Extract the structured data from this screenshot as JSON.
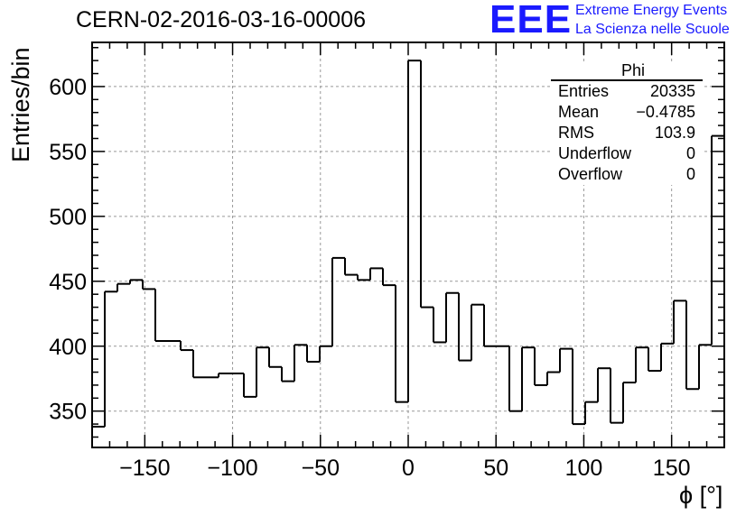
{
  "header": {
    "title": "CERN-02-2016-03-16-00006",
    "logo_text": "EEE",
    "org_line1": "Extreme Energy Events",
    "org_line2": "La Scienza nelle Scuole"
  },
  "stats_box": {
    "name": "Phi",
    "rows": [
      {
        "label": "Entries",
        "value": "20335"
      },
      {
        "label": "Mean",
        "value": "−0.4785"
      },
      {
        "label": "RMS",
        "value": "103.9"
      },
      {
        "label": "Underflow",
        "value": "0"
      },
      {
        "label": "Overflow",
        "value": "0"
      }
    ]
  },
  "colors": {
    "logo": "#1a1aff",
    "line": "#000000",
    "grid": "#999999"
  },
  "chart_data": {
    "type": "bar",
    "style": "step-histogram",
    "xlabel": "ϕ [°]",
    "ylabel": "Entries/bin",
    "xlim": [
      -180,
      180
    ],
    "ylim": [
      322,
      634
    ],
    "bin_width": 7.2,
    "x_ticks": [
      -150,
      -100,
      -50,
      0,
      50,
      100,
      150
    ],
    "x_tick_labels": [
      "−150",
      "−100",
      "−50",
      "0",
      "50",
      "100",
      "150"
    ],
    "y_ticks": [
      350,
      400,
      450,
      500,
      550,
      600
    ],
    "y_tick_labels": [
      "350",
      "400",
      "450",
      "500",
      "550",
      "600"
    ],
    "grid": true,
    "values": [
      338,
      442,
      448,
      451,
      444,
      404,
      404,
      397,
      376,
      376,
      379,
      379,
      361,
      399,
      384,
      373,
      401,
      388,
      400,
      468,
      455,
      451,
      460,
      447,
      357,
      620,
      430,
      403,
      441,
      389,
      432,
      400,
      400,
      350,
      399,
      370,
      380,
      398,
      340,
      357,
      383,
      341,
      372,
      399,
      381,
      402,
      435,
      367,
      401,
      562
    ]
  }
}
